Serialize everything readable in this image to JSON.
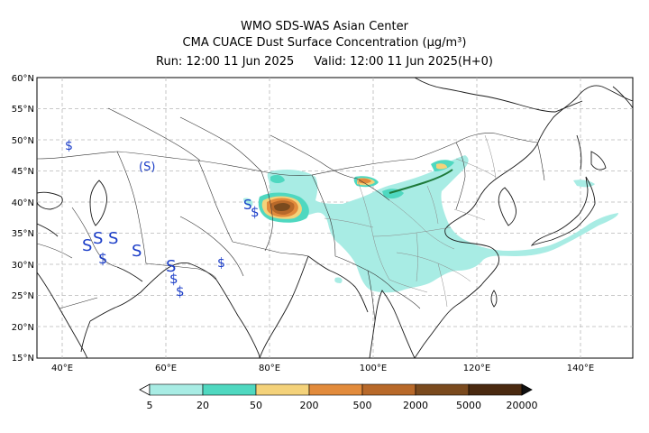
{
  "header": {
    "line1": "WMO SDS-WAS Asian Center",
    "line2": "CMA CUACE Dust Surface Concentration (μg/m³)",
    "run": "Run: 12:00 11 Jun 2025",
    "valid": "Valid: 12:00 11 Jun 2025(H+0)"
  },
  "map": {
    "lon_range": [
      35,
      150
    ],
    "lat_range": [
      15,
      60
    ],
    "lat_labels": [
      "15°N",
      "20°N",
      "25°N",
      "30°N",
      "35°N",
      "40°N",
      "45°N",
      "50°N",
      "55°N",
      "60°N"
    ],
    "lon_labels": [
      "40°E",
      "60°E",
      "80°E",
      "100°E",
      "120°E",
      "140°E"
    ]
  },
  "colorbar": {
    "labels": [
      "5",
      "20",
      "50",
      "200",
      "500",
      "2000",
      "5000",
      "20000"
    ],
    "colors": [
      "#a8ece4",
      "#4fd8c0",
      "#f4d27a",
      "#e28b3c",
      "#b8692a",
      "#7a4a1e",
      "#4a2a10"
    ]
  },
  "symbols": {
    "dust_storm": "S",
    "blowing_dust": "$",
    "raised_dust_bracketed": "(S)"
  }
}
